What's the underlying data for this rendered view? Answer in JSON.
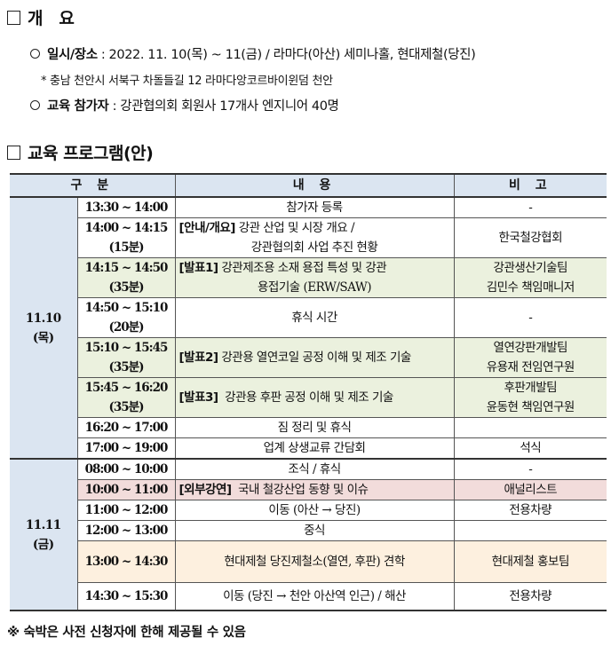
{
  "overview": {
    "heading": "개   요",
    "items": [
      {
        "label": "일시/장소",
        "text": " : 2022. 11. 10(목) ~ 11(금) / 라마다(아산) 세미나홀, 현대제철(당진)"
      },
      {
        "label": "교육 참가자",
        "text": " : 강관협의회 회원사 17개사 엔지니어 40명"
      }
    ],
    "address": "* 충남 천안시 서북구 차돌들길 12 라마다앙코르바이윈덤 천안"
  },
  "program": {
    "heading": "교육 프로그램(안)",
    "headers": [
      "구 분",
      "내 용",
      "비 고"
    ],
    "colors": {
      "header": "#dbe5f1",
      "green": "#ebf1de",
      "pink": "#f2dcdb",
      "cream": "#fdf0df"
    },
    "days": [
      {
        "date": "11.10",
        "weekday": "(목)",
        "rows": [
          {
            "time": [
              "13:30 ~ 14:00"
            ],
            "content": [
              "참가자 등록"
            ],
            "note": [
              "-"
            ]
          },
          {
            "time": [
              "14:00 ~ 14:15",
              "(15분)"
            ],
            "tag": "[안내/개요]",
            "content": [
              " 강관 산업 및 시장 개요 /",
              "강관협의회 사업 추진 현황"
            ],
            "note": [
              "한국철강협회"
            ]
          },
          {
            "time": [
              "14:15 ~ 14:50",
              "(35분)"
            ],
            "tag": "[발표1]",
            "content": [
              " 강관제조용 소재 용접 특성 및 강관",
              "용접기술 (ERW/SAW)"
            ],
            "note": [
              "강관생산기술팀",
              "김민수 책임매니저"
            ],
            "bg": "green"
          },
          {
            "time": [
              "14:50 ~ 15:10",
              "(20분)"
            ],
            "content": [
              "휴식 시간"
            ],
            "note": [
              "-"
            ]
          },
          {
            "time": [
              "15:10 ~ 15:45",
              "(35분)"
            ],
            "tag": "[발표2]",
            "content": [
              " 강관용 열연코일 공정 이해 및 제조 기술"
            ],
            "note": [
              "열연강판개발팀",
              "유용재 전임연구원"
            ],
            "bg": "green"
          },
          {
            "time": [
              "15:45 ~ 16:20",
              "(35분)"
            ],
            "tag": "[발표3]",
            "content": [
              "  강관용 후판 공정 이해 및 제조 기술"
            ],
            "note": [
              "후판개발팀",
              "윤동현 책임연구원"
            ],
            "bg": "green"
          },
          {
            "time": [
              "16:20 ~ 17:00"
            ],
            "content": [
              "짐 정리 및 휴식"
            ],
            "note": [
              ""
            ]
          },
          {
            "time": [
              "17:00 ~ 19:00"
            ],
            "content": [
              "업계 상생교류 간담회"
            ],
            "note": [
              "석식"
            ]
          }
        ]
      },
      {
        "date": "11.11",
        "weekday": "(금)",
        "rows": [
          {
            "time": [
              "08:00 ~ 10:00"
            ],
            "content": [
              "조식 / 휴식"
            ],
            "note": [
              "-"
            ]
          },
          {
            "time": [
              "10:00 ~ 11:00"
            ],
            "tag": "[외부강연]",
            "content": [
              "  국내 철강산업 동향 및 이슈"
            ],
            "note": [
              "애널리스트"
            ],
            "bg": "pink"
          },
          {
            "time": [
              "11:00 ~ 12:00"
            ],
            "content": [
              "이동 (아산 → 당진)"
            ],
            "note": [
              "전용차량"
            ]
          },
          {
            "time": [
              "12:00 ~ 13:00"
            ],
            "content": [
              "중식"
            ],
            "note": [
              ""
            ]
          },
          {
            "time": [
              "13:00 ~ 14:30"
            ],
            "content": [
              "현대제철 당진제철소(열연, 후판) 견학"
            ],
            "note": [
              "현대제철 홍보팀"
            ],
            "bg": "cream",
            "tall": true
          },
          {
            "time": [
              "14:30 ~ 15:30"
            ],
            "content": [
              "이동 (당진 → 천안 아산역 인근) / 해산"
            ],
            "note": [
              "전용차량"
            ],
            "tall": true
          }
        ]
      }
    ]
  },
  "footnote": "※ 숙박은 사전 신청자에 한해 제공될 수 있음"
}
